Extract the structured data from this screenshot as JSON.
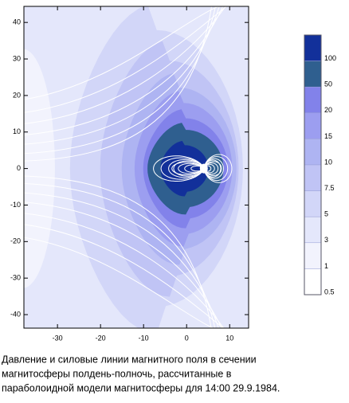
{
  "chart_data": {
    "type": "contour",
    "xlim": [
      -37.8,
      14.4
    ],
    "ylim": [
      -43.7,
      44.4
    ],
    "xticks": [
      -30,
      -20,
      -10,
      0,
      10
    ],
    "yticks": [
      40,
      30,
      20,
      10,
      0,
      -10,
      -20,
      -30,
      -40
    ],
    "levels": [
      100,
      50,
      20,
      15,
      10,
      7.5,
      5,
      3,
      1,
      0.5
    ],
    "level_colors": [
      "#12309a",
      "#2f5f8f",
      "#8282ea",
      "#9c9ef0",
      "#aeb4f2",
      "#c0c4f5",
      "#d2d6f8",
      "#e4e7fb",
      "#f2f3fd",
      "#ffffff"
    ],
    "caption": [
      "Давление и силовые линии магнитного поля в сечении",
      "магнитосферы полдень-полночь, рассчитанные в",
      "параболоидной модели магнитосферы для 14:00 29.9.1984."
    ]
  }
}
